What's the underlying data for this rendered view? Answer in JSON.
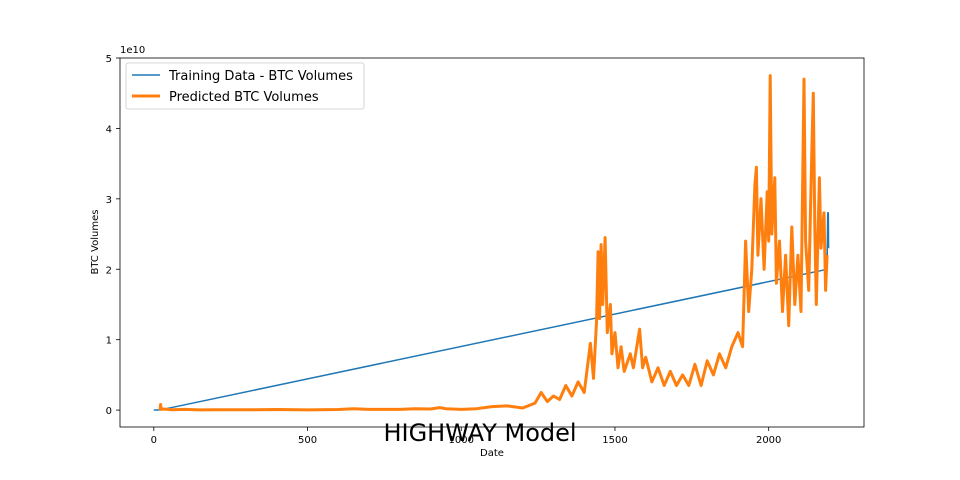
{
  "chart_data": {
    "type": "line",
    "title": "HIGHWAY Model",
    "xlabel": "Date",
    "ylabel": "BTC Volumes",
    "y_offset_label": "1e10",
    "xlim": [
      -110,
      2310
    ],
    "ylim": [
      -2400000000.0,
      50000000000.0
    ],
    "x_ticks": [
      0,
      500,
      1000,
      1500,
      2000
    ],
    "y_ticks": [
      0,
      10000000000.0,
      20000000000.0,
      30000000000.0,
      40000000000.0,
      50000000000.0
    ],
    "y_tick_labels": [
      "0",
      "1",
      "2",
      "3",
      "4",
      "5"
    ],
    "grid": false,
    "legend_position": "upper-left",
    "series": [
      {
        "name": "Training Data - BTC Volumes",
        "color": "#1f77b4",
        "line_width": 1.5,
        "points": [
          [
            0,
            20000000.0
          ],
          [
            10,
            20000000.0
          ],
          [
            18,
            25000000.0
          ],
          [
            25,
            50000000.0
          ],
          [
            2190,
            20000000000.0
          ],
          [
            2192,
            28000000000.0
          ],
          [
            2194,
            28000000000.0
          ],
          [
            2195,
            23000000000.0
          ]
        ]
      },
      {
        "name": "Predicted BTC Volumes",
        "color": "#ff7f0e",
        "line_width": 3,
        "points": [
          [
            20,
            20000000.0
          ],
          [
            22,
            800000000.0
          ],
          [
            24,
            100000000.0
          ],
          [
            30,
            150000000.0
          ],
          [
            60,
            50000000.0
          ],
          [
            100,
            100000000.0
          ],
          [
            150,
            30000000.0
          ],
          [
            200,
            60000000.0
          ],
          [
            300,
            40000000.0
          ],
          [
            400,
            80000000.0
          ],
          [
            500,
            30000000.0
          ],
          [
            600,
            90000000.0
          ],
          [
            650,
            200000000.0
          ],
          [
            700,
            100000000.0
          ],
          [
            800,
            100000000.0
          ],
          [
            850,
            200000000.0
          ],
          [
            900,
            150000000.0
          ],
          [
            930,
            350000000.0
          ],
          [
            950,
            200000000.0
          ],
          [
            1000,
            100000000.0
          ],
          [
            1050,
            200000000.0
          ],
          [
            1100,
            500000000.0
          ],
          [
            1150,
            600000000.0
          ],
          [
            1200,
            300000000.0
          ],
          [
            1240,
            1000000000.0
          ],
          [
            1260,
            2500000000.0
          ],
          [
            1280,
            1200000000.0
          ],
          [
            1300,
            2000000000.0
          ],
          [
            1320,
            1500000000.0
          ],
          [
            1340,
            3500000000.0
          ],
          [
            1360,
            2000000000.0
          ],
          [
            1380,
            4000000000.0
          ],
          [
            1400,
            2500000000.0
          ],
          [
            1420,
            9500000000.0
          ],
          [
            1430,
            4500000000.0
          ],
          [
            1440,
            12500000000.0
          ],
          [
            1445,
            22500000000.0
          ],
          [
            1450,
            13000000000.0
          ],
          [
            1455,
            23500000000.0
          ],
          [
            1460,
            15000000000.0
          ],
          [
            1468,
            24500000000.0
          ],
          [
            1475,
            11000000000.0
          ],
          [
            1485,
            15000000000.0
          ],
          [
            1490,
            8000000000.0
          ],
          [
            1500,
            11000000000.0
          ],
          [
            1510,
            6000000000.0
          ],
          [
            1520,
            9000000000.0
          ],
          [
            1530,
            5500000000.0
          ],
          [
            1550,
            8000000000.0
          ],
          [
            1560,
            6000000000.0
          ],
          [
            1580,
            11500000000.0
          ],
          [
            1590,
            6000000000.0
          ],
          [
            1600,
            7500000000.0
          ],
          [
            1620,
            4000000000.0
          ],
          [
            1640,
            6000000000.0
          ],
          [
            1660,
            3500000000.0
          ],
          [
            1680,
            5500000000.0
          ],
          [
            1700,
            3500000000.0
          ],
          [
            1720,
            5000000000.0
          ],
          [
            1740,
            3500000000.0
          ],
          [
            1760,
            6500000000.0
          ],
          [
            1780,
            3500000000.0
          ],
          [
            1800,
            7000000000.0
          ],
          [
            1820,
            5000000000.0
          ],
          [
            1840,
            8000000000.0
          ],
          [
            1860,
            6000000000.0
          ],
          [
            1880,
            9000000000.0
          ],
          [
            1900,
            11000000000.0
          ],
          [
            1915,
            9000000000.0
          ],
          [
            1925,
            24000000000.0
          ],
          [
            1935,
            14000000000.0
          ],
          [
            1945,
            20000000000.0
          ],
          [
            1955,
            32000000000.0
          ],
          [
            1960,
            34500000000.0
          ],
          [
            1965,
            22000000000.0
          ],
          [
            1975,
            30000000000.0
          ],
          [
            1985,
            20000000000.0
          ],
          [
            1995,
            31000000000.0
          ],
          [
            2000,
            24000000000.0
          ],
          [
            2005,
            47500000000.0
          ],
          [
            2010,
            25000000000.0
          ],
          [
            2020,
            33000000000.0
          ],
          [
            2025,
            18000000000.0
          ],
          [
            2035,
            24000000000.0
          ],
          [
            2045,
            14000000000.0
          ],
          [
            2055,
            22000000000.0
          ],
          [
            2065,
            12000000000.0
          ],
          [
            2075,
            26000000000.0
          ],
          [
            2085,
            15000000000.0
          ],
          [
            2095,
            22000000000.0
          ],
          [
            2105,
            14000000000.0
          ],
          [
            2115,
            47000000000.0
          ],
          [
            2120,
            24000000000.0
          ],
          [
            2130,
            17000000000.0
          ],
          [
            2140,
            36000000000.0
          ],
          [
            2145,
            45000000000.0
          ],
          [
            2150,
            26000000000.0
          ],
          [
            2155,
            15000000000.0
          ],
          [
            2165,
            33000000000.0
          ],
          [
            2170,
            23000000000.0
          ],
          [
            2180,
            28000000000.0
          ],
          [
            2185,
            17000000000.0
          ],
          [
            2190,
            22000000000.0
          ]
        ]
      }
    ]
  }
}
